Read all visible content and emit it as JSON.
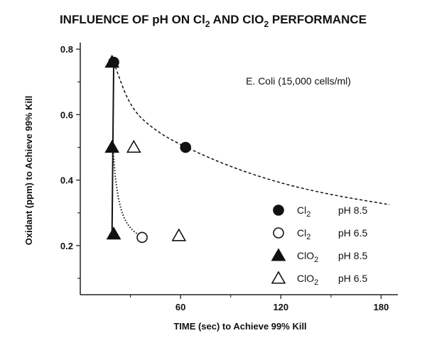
{
  "chart_data": {
    "type": "scatter",
    "title": "INFLUENCE OF pH ON Cl2 AND ClO2 PERFORMANCE",
    "title_parts": {
      "p1": "INFLUENCE OF pH ON Cl",
      "sub1": "2",
      "p2": " AND ClO",
      "sub2": "2",
      "p3": " PERFORMANCE"
    },
    "xlabel": "TIME (sec) to Achieve 99% Kill",
    "ylabel": "Oxidant (ppm) to Achieve 99% Kill",
    "xlim": [
      0,
      190
    ],
    "ylim": [
      0.05,
      0.82
    ],
    "x_ticks": [
      60,
      120,
      180
    ],
    "y_ticks": [
      0.2,
      0.4,
      0.6,
      0.8
    ],
    "y_tick_labels": [
      "0.2",
      "0.4",
      "0.6",
      "0.8"
    ],
    "annotation": "E. Coli (15,000 cells/ml)",
    "grid": false,
    "legend_position": "bottom-right",
    "series": [
      {
        "name": "Cl2 pH 8.5",
        "legend_chem": "Cl",
        "legend_sub": "2",
        "legend_ph": "pH 8.5",
        "marker": "filled-circle",
        "x": [
          20,
          63
        ],
        "y": [
          0.76,
          0.5
        ]
      },
      {
        "name": "Cl2 pH 6.5",
        "legend_chem": "Cl",
        "legend_sub": "2",
        "legend_ph": "pH 6.5",
        "marker": "open-circle",
        "x": [
          37
        ],
        "y": [
          0.225
        ]
      },
      {
        "name": "ClO2 pH 8.5",
        "legend_chem": "ClO",
        "legend_sub": "2",
        "legend_ph": "pH 8.5",
        "marker": "filled-triangle",
        "x": [
          19,
          19,
          20
        ],
        "y": [
          0.76,
          0.5,
          0.235
        ]
      },
      {
        "name": "ClO2 pH 6.5",
        "legend_chem": "ClO",
        "legend_sub": "2",
        "legend_ph": "pH 6.5",
        "marker": "open-triangle",
        "x": [
          32,
          59
        ],
        "y": [
          0.5,
          0.23
        ]
      }
    ],
    "curves": [
      {
        "style": "solid",
        "x": [
          20,
          19.5,
          19
        ],
        "y": [
          0.76,
          0.5,
          0.235
        ]
      },
      {
        "style": "dashed",
        "x": [
          20,
          30,
          45,
          63,
          90,
          120,
          150,
          185
        ],
        "y": [
          0.76,
          0.62,
          0.55,
          0.5,
          0.44,
          0.39,
          0.355,
          0.325
        ]
      },
      {
        "style": "dotted",
        "x": [
          19.5,
          21,
          24,
          29,
          37
        ],
        "y": [
          0.5,
          0.4,
          0.31,
          0.255,
          0.225
        ]
      }
    ]
  }
}
